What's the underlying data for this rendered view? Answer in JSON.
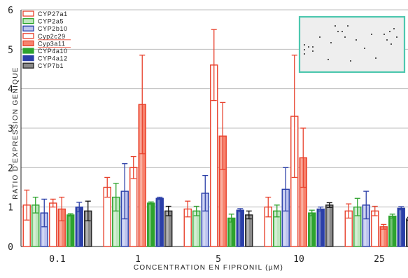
{
  "chart_data": {
    "type": "bar",
    "title": "",
    "xlabel": "CONCENTRATION EN FIPRONIL (µM)",
    "ylabel": "RATIO D'EXPRESSION GENIQUE",
    "categories": [
      "0.1",
      "1",
      "5",
      "10",
      "25"
    ],
    "ylim": [
      0,
      6
    ],
    "yticks": [
      0,
      1,
      2,
      3,
      4,
      5,
      6
    ],
    "legend_position": "top-left",
    "series": [
      {
        "name": "CYP27a1",
        "color": "#e8412c",
        "fill": "#ffffff",
        "highlight": false,
        "values": [
          1.05,
          1.5,
          0.95,
          1.0,
          0.9
        ],
        "errors": [
          0.38,
          0.25,
          0.2,
          0.25,
          0.18
        ]
      },
      {
        "name": "CYP2a5",
        "color": "#2ea32e",
        "fill": "#bfe6bf",
        "highlight": false,
        "values": [
          1.05,
          1.25,
          0.9,
          0.9,
          1.0
        ],
        "errors": [
          0.2,
          0.35,
          0.12,
          0.15,
          0.22
        ]
      },
      {
        "name": "CYP2b10",
        "color": "#2b3fa8",
        "fill": "#bcc4ee",
        "highlight": false,
        "values": [
          0.85,
          1.4,
          1.35,
          1.45,
          1.05
        ],
        "errors": [
          0.35,
          0.7,
          0.45,
          0.55,
          0.35
        ]
      },
      {
        "name": "Cyp2c29",
        "color": "#e8412c",
        "fill": "#ffffff",
        "highlight": true,
        "values": [
          1.1,
          2.0,
          4.6,
          3.3,
          0.9
        ],
        "errors": [
          0.1,
          0.28,
          0.9,
          1.55,
          0.12
        ]
      },
      {
        "name": "Cyp3a11",
        "color": "#e8412c",
        "fill": "#f7836e",
        "highlight": true,
        "values": [
          0.95,
          3.6,
          2.8,
          2.25,
          0.5
        ],
        "errors": [
          0.3,
          1.25,
          0.85,
          0.75,
          0.06
        ]
      },
      {
        "name": "CYP4a10",
        "color": "#2ea32e",
        "fill": "#2ea32e",
        "highlight": false,
        "values": [
          0.8,
          1.1,
          0.72,
          0.85,
          0.77
        ],
        "errors": [
          0.03,
          0.03,
          0.1,
          0.07,
          0.05
        ]
      },
      {
        "name": "CYP4a12",
        "color": "#2b3fa8",
        "fill": "#2b3fa8",
        "highlight": false,
        "values": [
          1.0,
          1.22,
          0.92,
          0.95,
          0.97
        ],
        "errors": [
          0.12,
          0.03,
          0.04,
          0.05,
          0.04
        ]
      },
      {
        "name": "CYP7b1",
        "color": "#222222",
        "fill": "#8a8a8a",
        "highlight": false,
        "values": [
          0.9,
          0.9,
          0.8,
          1.05,
          0.7
        ],
        "errors": [
          0.25,
          0.12,
          0.1,
          0.06,
          0.04
        ]
      }
    ]
  }
}
